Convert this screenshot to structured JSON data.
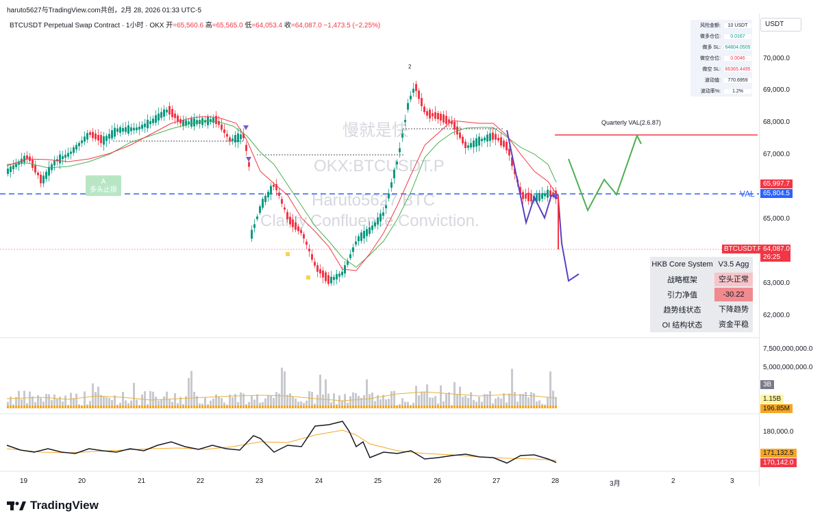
{
  "header": {
    "user_line": "haruto5627与TradingView.com共创，2月 28, 2026 01:33 UTC-5",
    "symbol_desc": "BTCUSDT Perpetual Swap Contract · 1小时 · OKX",
    "ohlc": {
      "open_label": "开",
      "open": "=65,560.6",
      "high_label": "高",
      "high": "=65,565.0",
      "low_label": "低",
      "low": "=64,053.4",
      "close_label": "收",
      "close": "=64,087.0",
      "change": "−1,473.5 (−2.25%)"
    }
  },
  "axis": {
    "currency": "USDT",
    "price_ticks": [
      "70,000.0",
      "69,000.0",
      "68,000.0",
      "67,000.0",
      "65,000.0",
      "63,000.0",
      "62,000.0"
    ],
    "volume_ticks": [
      "7,500,000,000.0",
      "5,000,000,000.0"
    ],
    "oi_ticks": [
      "180,000.0"
    ],
    "x_ticks": [
      "19",
      "20",
      "21",
      "22",
      "23",
      "24",
      "25",
      "26",
      "27",
      "28",
      "3月",
      "2",
      "3"
    ]
  },
  "price_labels": {
    "upper": "65,997.7",
    "val": "65,804.5",
    "symbol": "BTCUSDT.P",
    "last": "64,087.0",
    "countdown": "26:25",
    "vol_small": "3B",
    "vol_ma": "1.15B",
    "vol_last": "196.85M",
    "oi_ma": "171,132.5",
    "oi_last": "170,142.0"
  },
  "info_box": [
    {
      "k": "风险金额:",
      "v": "10 USDT",
      "color": "#131722"
    },
    {
      "k": "做多仓位:",
      "v": "0.0167",
      "color": "#089981"
    },
    {
      "k": "做多 SL:",
      "v": "64804.0505",
      "color": "#089981"
    },
    {
      "k": "做空仓位:",
      "v": "0.0046",
      "color": "#f23645"
    },
    {
      "k": "做空 SL:",
      "v": "66365.4495",
      "color": "#f23645"
    },
    {
      "k": "波动值:",
      "v": "770.6959",
      "color": "#131722"
    },
    {
      "k": "波动率%:",
      "v": "1.2%",
      "color": "#131722"
    }
  ],
  "hkb_table": {
    "title": "HKB Core System",
    "version": "V3.5 Agg",
    "rows": [
      {
        "k": "战略框架",
        "v": "空头正常",
        "bg": "#f8c4c8"
      },
      {
        "k": "引力净值",
        "v": "-30.22",
        "bg": "#f08a8f"
      },
      {
        "k": "趋势线状态",
        "v": "下降趋势",
        "bg": "#e8eaed"
      },
      {
        "k": "OI 结构状态",
        "v": "资金平稳",
        "bg": "#e8eaed"
      }
    ]
  },
  "annotations": {
    "a_marker": "A",
    "a_label": "多头止损",
    "peak_marker": "2",
    "val_label": "VAL",
    "quarter_val": "Quarterly VAL(2.6.87)"
  },
  "watermark": {
    "line1": "慢就是快",
    "line2": "OKX:BTCUSDT.P",
    "line3": "Haruto5627 BTC",
    "line4": "Clarity.Confluence.Conviction."
  },
  "branding": {
    "logo_text": "TradingView"
  },
  "colors": {
    "up": "#089981",
    "down": "#f23645",
    "val_line": "#2962ff",
    "forecast_up": "#4caf50",
    "forecast_down": "#5b3fc4"
  }
}
